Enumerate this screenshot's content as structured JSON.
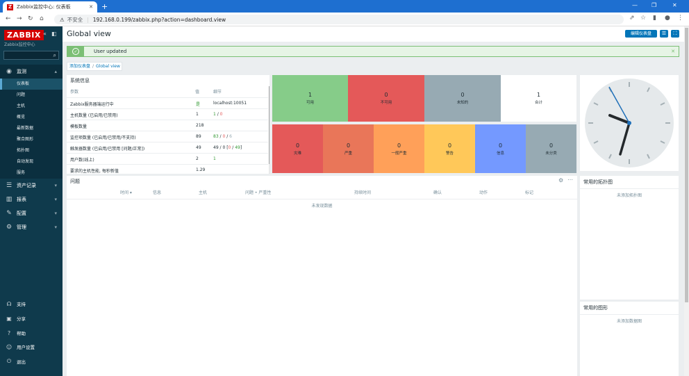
{
  "browser": {
    "tab_title": "Zabbix监控中心: 仪表板",
    "tab_icon": "Z",
    "insecure_label": "不安全",
    "url": "192.168.0.199/zabbix.php?action=dashboard.view"
  },
  "sidebar": {
    "logo": "ZABBIX",
    "subtitle": "Zabbix监控中心",
    "menu": [
      {
        "label": "监测",
        "icon": "eye-icon"
      },
      {
        "label": "资产记录",
        "icon": "list-icon"
      },
      {
        "label": "报表",
        "icon": "report-icon"
      },
      {
        "label": "配置",
        "icon": "wrench-icon"
      },
      {
        "label": "管理",
        "icon": "gear-icon"
      }
    ],
    "submenu": [
      "仪表板",
      "问题",
      "主机",
      "概览",
      "最新数据",
      "聚合图形",
      "拓扑图",
      "自动发现",
      "服务"
    ],
    "bottom": [
      {
        "label": "支持",
        "icon": "headset-icon"
      },
      {
        "label": "分享",
        "icon": "share-icon"
      },
      {
        "label": "帮助",
        "icon": "help-icon"
      },
      {
        "label": "用户设置",
        "icon": "user-icon"
      },
      {
        "label": "退出",
        "icon": "power-icon"
      }
    ]
  },
  "header": {
    "title": "Global view",
    "edit_button": "编辑仪表盘"
  },
  "message": {
    "text": "User updated"
  },
  "breadcrumb": {
    "parent": "添加仪表盘",
    "current": "Global view"
  },
  "system_info": {
    "title": "系统信息",
    "headers": [
      "参数",
      "值",
      "细节"
    ],
    "rows": [
      {
        "param": "Zabbix服务器端运行中",
        "value": "是",
        "detail": "localhost:10051"
      },
      {
        "param": "主机数量 (已启用/已禁用)",
        "value": "1",
        "detail": "1 / 0"
      },
      {
        "param": "模板数量",
        "value": "218",
        "detail": ""
      },
      {
        "param": "监控项数量 (已启用/已禁用/不支持)",
        "value": "89",
        "detail": "83 / 0 / 6"
      },
      {
        "param": "触发器数量 (已启用/已禁用 [问题/正常])",
        "value": "49",
        "detail": "49 / 0 [0 / 49]"
      },
      {
        "param": "用户数(线上)",
        "value": "2",
        "detail": "1"
      },
      {
        "param": "要求的主机性能, 每秒新值",
        "value": "1.29",
        "detail": ""
      }
    ]
  },
  "host_availability": [
    {
      "count": "1",
      "label": "可用",
      "color": "#86cc89"
    },
    {
      "count": "0",
      "label": "不可用",
      "color": "#e45959"
    },
    {
      "count": "0",
      "label": "未知的",
      "color": "#97aab3"
    },
    {
      "count": "1",
      "label": "合计",
      "color": "#ffffff"
    }
  ],
  "problem_severity": [
    {
      "count": "0",
      "label": "灾难",
      "color": "#e45959"
    },
    {
      "count": "0",
      "label": "严重",
      "color": "#e97659"
    },
    {
      "count": "0",
      "label": "一般严重",
      "color": "#ffa059"
    },
    {
      "count": "0",
      "label": "警告",
      "color": "#ffc859"
    },
    {
      "count": "0",
      "label": "信息",
      "color": "#7499ff"
    },
    {
      "count": "0",
      "label": "未分类",
      "color": "#97aab3"
    }
  ],
  "problems": {
    "title": "问题",
    "columns": [
      "时间 ▾",
      "信息",
      "主机",
      "问题 • 严重性",
      "持续时间",
      "确认",
      "动作",
      "标记"
    ],
    "empty": "未发现数据"
  },
  "fav_maps": {
    "title": "常用的拓扑图",
    "empty": "未添加拓扑图"
  },
  "fav_graphs": {
    "title": "常用的图形",
    "empty": "未添加数据图"
  }
}
